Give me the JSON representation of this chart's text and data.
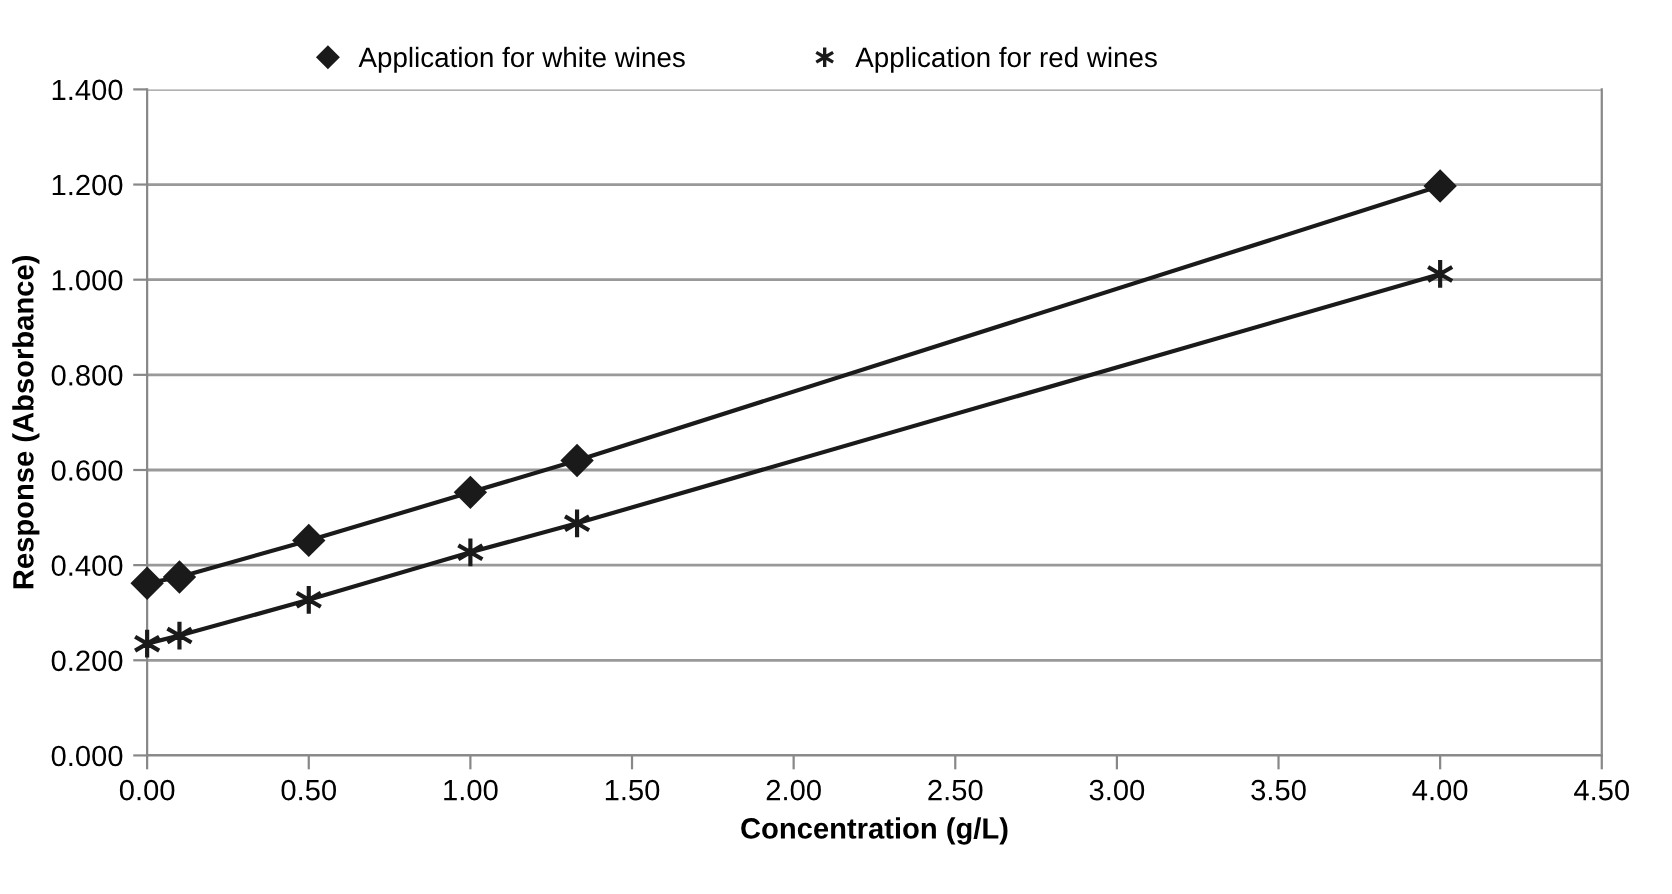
{
  "chart_data": {
    "type": "line",
    "xlabel": "Concentration (g/L)",
    "ylabel": "Response (Absorbance)",
    "series": [
      {
        "name": "Application for white wines",
        "color": "#1a1a1a",
        "marker": "diamond",
        "x": [
          0,
          0.1,
          0.5,
          1.0,
          1.33,
          4.0
        ],
        "values": [
          0.362,
          0.375,
          0.452,
          0.553,
          0.62,
          1.197
        ]
      },
      {
        "name": "Application for red wines",
        "color": "#1a1a1a",
        "marker": "cross",
        "x": [
          0,
          0.1,
          0.5,
          1.0,
          1.33,
          4.0
        ],
        "values": [
          0.235,
          0.252,
          0.327,
          0.427,
          0.488,
          1.012
        ]
      }
    ],
    "xlim": [
      0,
      4.5
    ],
    "xticks": [
      {
        "value": 0,
        "label": "0.00"
      },
      {
        "value": 0.5,
        "label": "0.50"
      },
      {
        "value": 1,
        "label": "1.00"
      },
      {
        "value": 1.5,
        "label": "1.50"
      },
      {
        "value": 2,
        "label": "2.00"
      },
      {
        "value": 2.5,
        "label": "2.50"
      },
      {
        "value": 3,
        "label": "3.00"
      },
      {
        "value": 3.5,
        "label": "3.50"
      },
      {
        "value": 4,
        "label": "4.00"
      },
      {
        "value": 4.5,
        "label": "4.50"
      }
    ],
    "ylim": [
      0,
      1.4
    ],
    "yticks": [
      {
        "value": 0,
        "label": "0.000"
      },
      {
        "value": 0.2,
        "label": "0.200"
      },
      {
        "value": 0.4,
        "label": "0.400"
      },
      {
        "value": 0.6,
        "label": "0.600"
      },
      {
        "value": 0.8,
        "label": "0.800"
      },
      {
        "value": 1.0,
        "label": "1.000"
      },
      {
        "value": 1.2,
        "label": "1.200"
      },
      {
        "value": 1.4,
        "label": "1.400"
      }
    ],
    "grid": "y",
    "legend": "top",
    "line_style": "solid"
  }
}
